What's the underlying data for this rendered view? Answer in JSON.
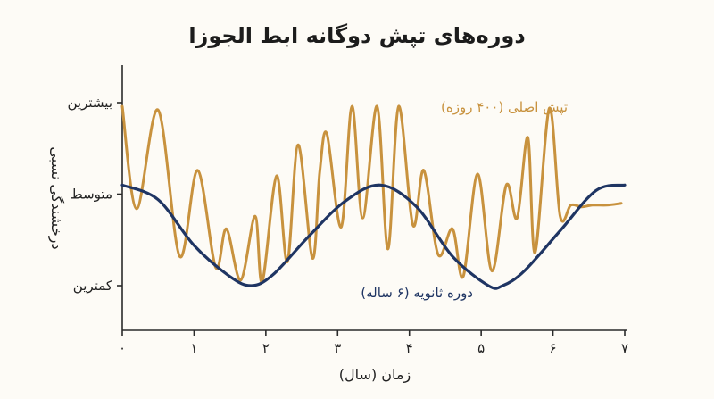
{
  "chart_data": {
    "type": "line",
    "title": "دوره‌های تپش دوگانه ابط الجوزا",
    "xlabel": "زمان (سال)",
    "ylabel": "درخشندگی نسبی",
    "x_ticks": [
      "۰",
      "۱",
      "۲",
      "۳",
      "۴",
      "۵",
      "۶",
      "۷"
    ],
    "xlim": [
      0,
      7
    ],
    "y_ticks": [
      {
        "label": "کمترین",
        "value": 0
      },
      {
        "label": "متوسط",
        "value": 0.5
      },
      {
        "label": "بیشترین",
        "value": 1
      }
    ],
    "ylim": [
      -0.25,
      1.2
    ],
    "grid": false,
    "legend": "none",
    "series": [
      {
        "name": "تپش اصلی (۴۰۰ روزه)",
        "color": "#c8923e",
        "x": [
          0.0,
          0.2,
          0.5,
          0.8,
          1.05,
          1.3,
          1.45,
          1.65,
          1.85,
          1.95,
          2.15,
          2.3,
          2.45,
          2.65,
          2.75,
          2.85,
          3.05,
          3.2,
          3.35,
          3.55,
          3.7,
          3.85,
          4.05,
          4.2,
          4.4,
          4.6,
          4.75,
          4.95,
          5.15,
          5.35,
          5.5,
          5.65,
          5.75,
          5.95,
          6.1,
          6.25,
          6.4,
          6.55,
          6.75,
          6.95
        ],
        "values": [
          0.98,
          0.42,
          0.96,
          0.16,
          0.63,
          0.1,
          0.31,
          0.03,
          0.38,
          0.02,
          0.6,
          0.13,
          0.77,
          0.15,
          0.62,
          0.83,
          0.32,
          0.98,
          0.37,
          0.98,
          0.2,
          0.98,
          0.33,
          0.63,
          0.17,
          0.31,
          0.05,
          0.61,
          0.08,
          0.55,
          0.37,
          0.81,
          0.18,
          0.97,
          0.38,
          0.44,
          0.43,
          0.44,
          0.44,
          0.45
        ],
        "label": "تپش اصلی (۴۰۰ روزه)"
      },
      {
        "name": "دوره ثانویه (۶ ساله)",
        "color": "#1f3563",
        "x": [
          0.0,
          0.5,
          1.0,
          1.5,
          1.8,
          2.1,
          2.6,
          3.1,
          3.6,
          4.1,
          4.6,
          5.1,
          5.3,
          5.6,
          6.1,
          6.6,
          7.0
        ],
        "values": [
          0.55,
          0.47,
          0.22,
          0.05,
          0.0,
          0.06,
          0.27,
          0.46,
          0.55,
          0.43,
          0.16,
          0.0,
          0.0,
          0.08,
          0.3,
          0.52,
          0.55
        ],
        "label": "دوره ثانویه (۶ ساله)"
      }
    ]
  }
}
